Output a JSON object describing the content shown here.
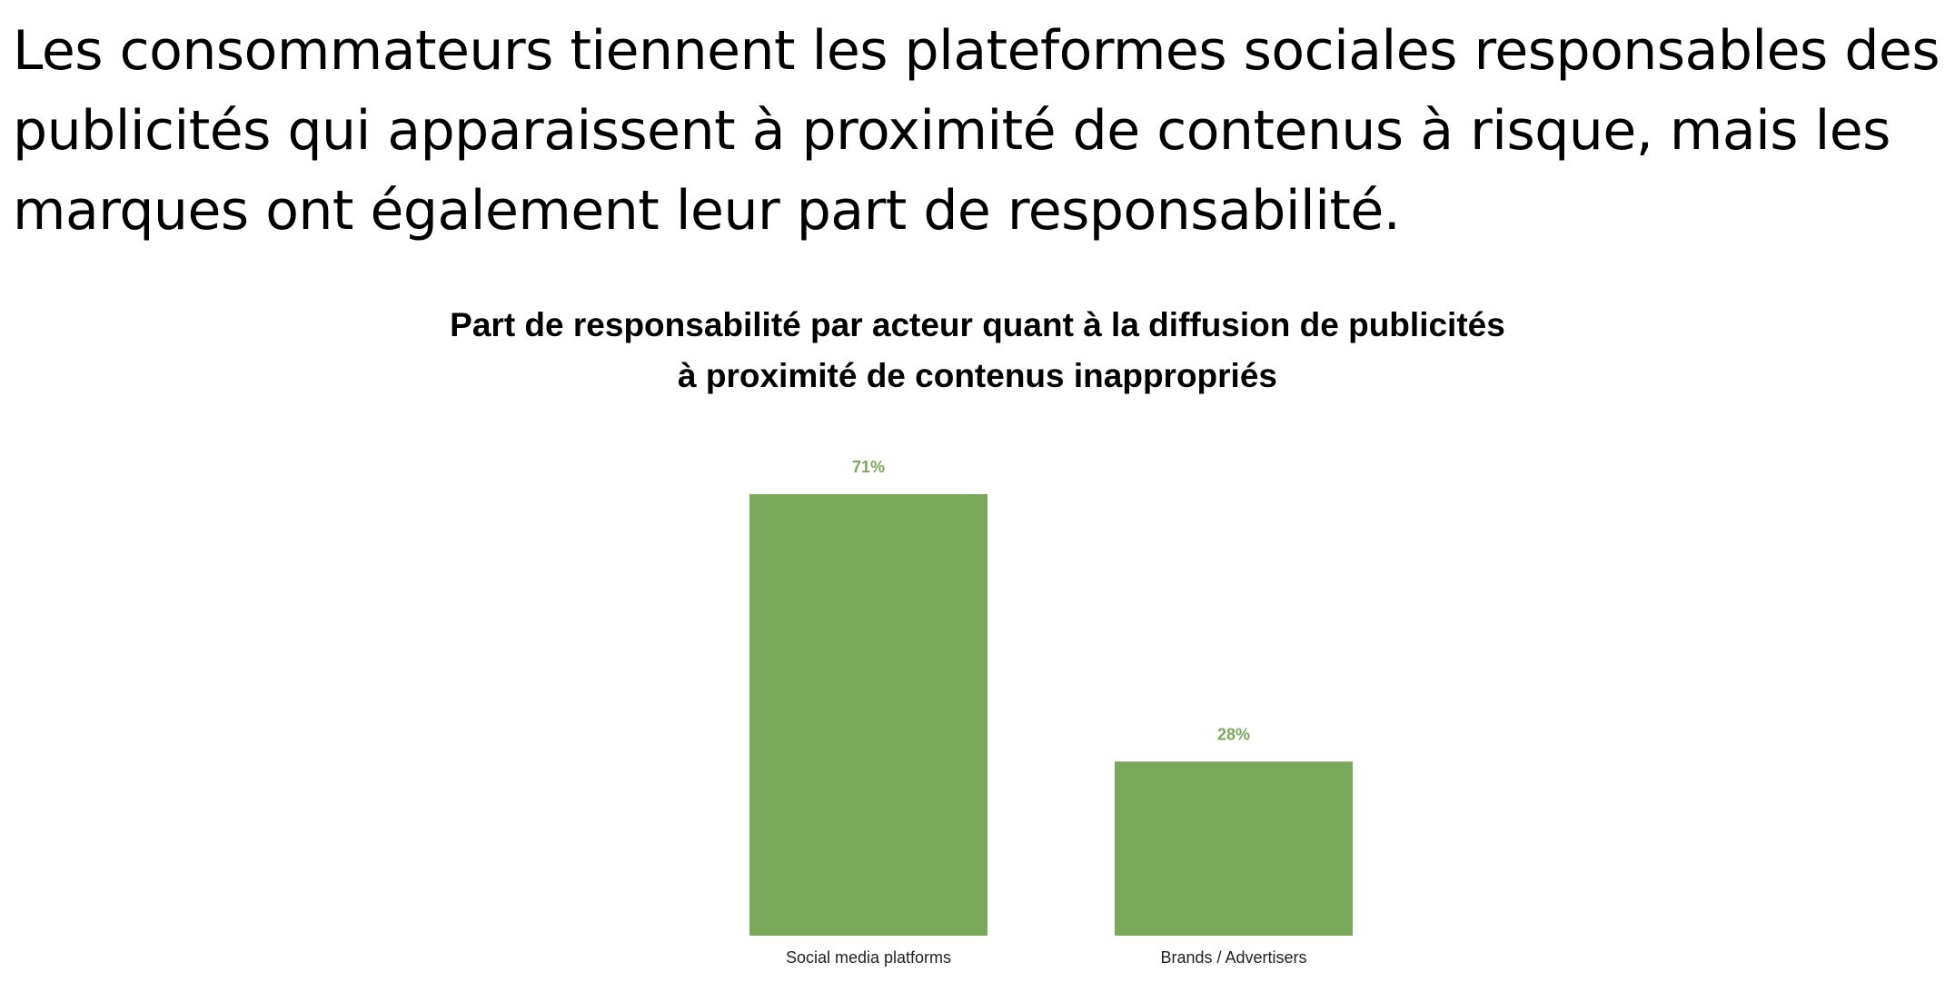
{
  "headline": {
    "lines": [
      "Les consommateurs tiennent les plateformes sociales responsables des",
      "publicités qui apparaissent à proximité de contenus à risque, mais les",
      "marques ont également leur part de responsabilité."
    ]
  },
  "chart_data": {
    "type": "bar",
    "title_lines": [
      "Part de responsabilité par acteur quant à la diffusion de publicités",
      "à proximité de contenus inappropriés"
    ],
    "categories": [
      "Social media platforms",
      "Brands / Advertisers"
    ],
    "values": [
      71,
      28
    ],
    "value_labels": [
      "71%",
      "28%"
    ],
    "ylim": [
      0,
      71
    ],
    "grid": false,
    "axes_visible": false,
    "bar_color": "#79a85b",
    "label_color": "#79a85b"
  }
}
